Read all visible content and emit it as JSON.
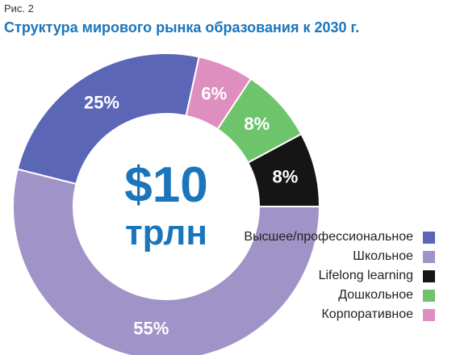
{
  "figure_label": "Рис. 2",
  "title": "Структура мирового рынка образования к 2030 г.",
  "center": {
    "value": "$10",
    "unit": "трлн",
    "color": "#1b75bb"
  },
  "chart_data": {
    "type": "pie",
    "variant": "donut",
    "title": "Структура мирового рынка образования к 2030 г.",
    "total": "$10 трлн",
    "slices": [
      {
        "name": "Школьное",
        "value": 55,
        "label": "55%",
        "color": "#a093c8"
      },
      {
        "name": "Высшее/профессиональное",
        "value": 25,
        "label": "25%",
        "color": "#5b66b7"
      },
      {
        "name": "Корпоративное",
        "value": 6,
        "label": "6%",
        "color": "#de8fc0"
      },
      {
        "name": "Дошкольное",
        "value": 8,
        "label": "8%",
        "color": "#6ec46b"
      },
      {
        "name": "Lifelong learning",
        "value": 8,
        "label": "8%",
        "color": "#151515"
      }
    ],
    "legend": [
      {
        "name": "Высшее/профессиональное",
        "color": "#5b66b7"
      },
      {
        "name": "Школьное",
        "color": "#a093c8"
      },
      {
        "name": "Lifelong learning",
        "color": "#151515"
      },
      {
        "name": "Дошкольное",
        "color": "#6ec46b"
      },
      {
        "name": "Корпоративное",
        "color": "#de8fc0"
      }
    ],
    "legend_position": "bottom-right"
  }
}
